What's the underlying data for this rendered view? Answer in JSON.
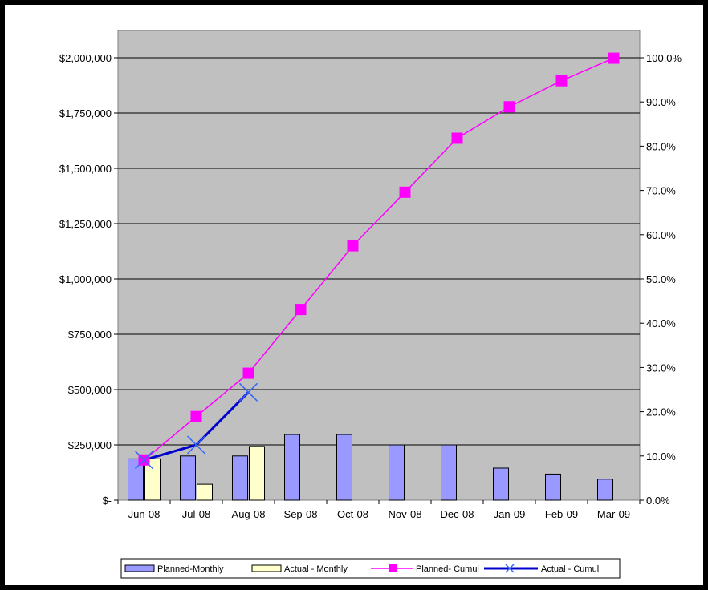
{
  "chart_data": {
    "type": "bar",
    "categories": [
      "Jun-08",
      "Jul-08",
      "Aug-08",
      "Sep-08",
      "Oct-08",
      "Nov-08",
      "Dec-08",
      "Jan-09",
      "Feb-09",
      "Mar-09"
    ],
    "series": [
      {
        "name": "Planned-Monthly",
        "kind": "bar",
        "axis": "left",
        "color": "#9999FF",
        "values": [
          187000,
          200000,
          200000,
          297000,
          297000,
          250000,
          250000,
          145000,
          118000,
          95000
        ]
      },
      {
        "name": "Actual - Monthly",
        "kind": "bar",
        "axis": "left",
        "color": "#FFFFCC",
        "values": [
          187000,
          72000,
          243000,
          null,
          null,
          null,
          null,
          null,
          null,
          null
        ]
      },
      {
        "name": "Planned- Cumul",
        "kind": "line",
        "marker": "square",
        "axis": "right",
        "color": "#FF00FF",
        "values": [
          9.1,
          18.9,
          28.7,
          43.1,
          57.5,
          69.6,
          81.8,
          88.9,
          94.8,
          99.9
        ]
      },
      {
        "name": "Actual - Cumul",
        "kind": "line",
        "marker": "x",
        "axis": "right",
        "color": "#0000CC",
        "values": [
          9.1,
          12.5,
          24.4,
          null,
          null,
          null,
          null,
          null,
          null,
          null
        ]
      }
    ],
    "ylim": [
      0,
      2000000
    ],
    "y2lim": [
      0,
      100
    ],
    "y_ticks": [
      "$-",
      "$250,000",
      "$500,000",
      "$750,000",
      "$1,000,000",
      "$1,250,000",
      "$1,500,000",
      "$1,750,000",
      "$2,000,000"
    ],
    "y2_ticks": [
      "0.0%",
      "10.0%",
      "20.0%",
      "30.0%",
      "40.0%",
      "50.0%",
      "60.0%",
      "70.0%",
      "80.0%",
      "90.0%",
      "100.0%"
    ],
    "grid": true,
    "plot_background": "#C0C0C0",
    "legend_position": "bottom",
    "legend": [
      "Planned-Monthly",
      "Actual - Monthly",
      "Planned- Cumul",
      "Actual - Cumul"
    ]
  }
}
